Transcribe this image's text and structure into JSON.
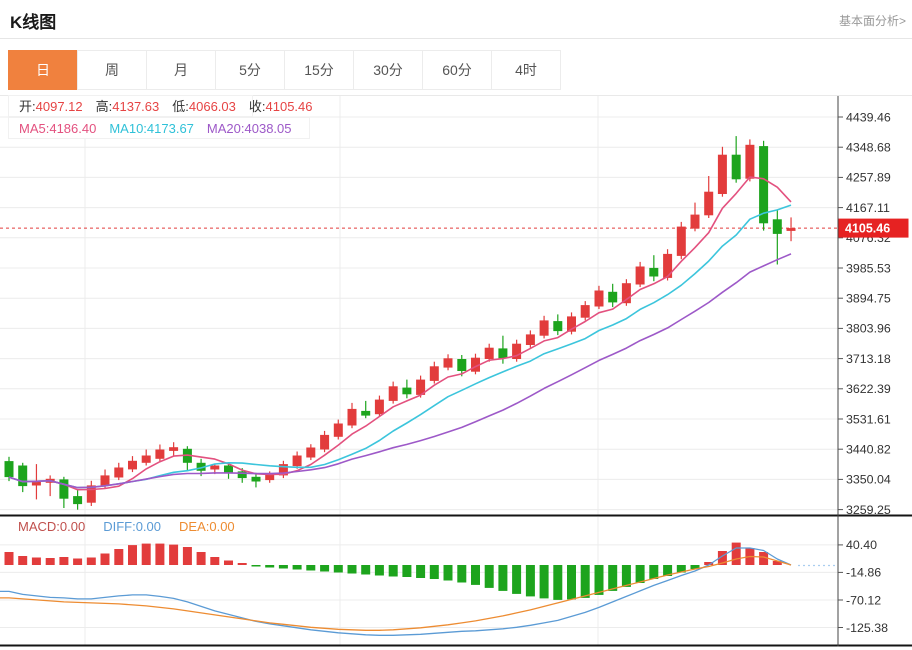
{
  "header": {
    "title": "K线图",
    "link": "基本面分析>"
  },
  "tabs": {
    "items": [
      "日",
      "周",
      "月",
      "5分",
      "15分",
      "30分",
      "60分",
      "4时"
    ],
    "active": "日"
  },
  "info": {
    "ohlc": [
      {
        "label": "开:",
        "value": "4097.12"
      },
      {
        "label": "高:",
        "value": "4137.63"
      },
      {
        "label": "低:",
        "value": "4066.03"
      },
      {
        "label": "收:",
        "value": "4105.46"
      }
    ],
    "ma": [
      {
        "label": "MA5:",
        "value": "4186.40",
        "color": "#e3517f"
      },
      {
        "label": "MA10:",
        "value": "4173.67",
        "color": "#2fc1d8"
      },
      {
        "label": "MA20:",
        "value": "4038.05",
        "color": "#9d59c8"
      }
    ]
  },
  "macd_legend": [
    {
      "label": "MACD:",
      "value": "0.00",
      "color": "#c0504d"
    },
    {
      "label": "DIFF:",
      "value": "0.00",
      "color": "#5b9bd5"
    },
    {
      "label": "DEA:",
      "value": "0.00",
      "color": "#ed8c32"
    }
  ],
  "price_badge": "4105.46",
  "chart_data": {
    "type": "candlestick",
    "title": "K线图 日K with MACD",
    "price_ticks": [
      "4439.46",
      "4348.68",
      "4257.89",
      "4167.11",
      "4076.32",
      "3985.53",
      "3894.75",
      "3803.96",
      "3713.18",
      "3622.39",
      "3531.61",
      "3440.82",
      "3350.04",
      "3259.25"
    ],
    "macd_ticks": [
      "40.40",
      "-14.86",
      "-70.12",
      "-125.38"
    ],
    "current_price": 4105.46,
    "ma_periods": [
      5,
      10,
      20
    ],
    "candles": [
      [
        3405,
        3418,
        3345,
        3357
      ],
      [
        3392,
        3400,
        3312,
        3330
      ],
      [
        3332,
        3396,
        3290,
        3346
      ],
      [
        3340,
        3362,
        3300,
        3352
      ],
      [
        3350,
        3358,
        3264,
        3292
      ],
      [
        3300,
        3318,
        3259,
        3276
      ],
      [
        3280,
        3346,
        3270,
        3332
      ],
      [
        3330,
        3380,
        3322,
        3362
      ],
      [
        3356,
        3400,
        3348,
        3386
      ],
      [
        3380,
        3420,
        3372,
        3406
      ],
      [
        3400,
        3440,
        3392,
        3422
      ],
      [
        3412,
        3455,
        3404,
        3440
      ],
      [
        3436,
        3462,
        3420,
        3447
      ],
      [
        3442,
        3450,
        3378,
        3400
      ],
      [
        3400,
        3412,
        3360,
        3376
      ],
      [
        3380,
        3398,
        3366,
        3392
      ],
      [
        3392,
        3400,
        3352,
        3368
      ],
      [
        3374,
        3384,
        3340,
        3354
      ],
      [
        3358,
        3370,
        3326,
        3344
      ],
      [
        3348,
        3374,
        3340,
        3366
      ],
      [
        3362,
        3406,
        3354,
        3396
      ],
      [
        3390,
        3434,
        3382,
        3422
      ],
      [
        3416,
        3456,
        3408,
        3446
      ],
      [
        3440,
        3496,
        3432,
        3484
      ],
      [
        3478,
        3530,
        3470,
        3518
      ],
      [
        3512,
        3580,
        3504,
        3562
      ],
      [
        3556,
        3586,
        3534,
        3542
      ],
      [
        3546,
        3602,
        3538,
        3590
      ],
      [
        3586,
        3644,
        3578,
        3630
      ],
      [
        3626,
        3650,
        3594,
        3606
      ],
      [
        3604,
        3662,
        3596,
        3650
      ],
      [
        3646,
        3704,
        3638,
        3690
      ],
      [
        3686,
        3726,
        3678,
        3714
      ],
      [
        3712,
        3724,
        3660,
        3676
      ],
      [
        3674,
        3728,
        3666,
        3716
      ],
      [
        3712,
        3758,
        3704,
        3746
      ],
      [
        3744,
        3782,
        3698,
        3714
      ],
      [
        3712,
        3770,
        3704,
        3758
      ],
      [
        3754,
        3798,
        3746,
        3786
      ],
      [
        3782,
        3842,
        3774,
        3828
      ],
      [
        3826,
        3846,
        3784,
        3796
      ],
      [
        3794,
        3852,
        3786,
        3840
      ],
      [
        3836,
        3886,
        3828,
        3874
      ],
      [
        3870,
        3932,
        3862,
        3918
      ],
      [
        3914,
        3938,
        3868,
        3882
      ],
      [
        3880,
        3952,
        3872,
        3940
      ],
      [
        3936,
        4004,
        3928,
        3990
      ],
      [
        3986,
        4024,
        3946,
        3960
      ],
      [
        3956,
        4042,
        3948,
        4028
      ],
      [
        4022,
        4124,
        4012,
        4110
      ],
      [
        4104,
        4182,
        4096,
        4146
      ],
      [
        4144,
        4262,
        4136,
        4215
      ],
      [
        4208,
        4350,
        4200,
        4326
      ],
      [
        4326,
        4382,
        4242,
        4252
      ],
      [
        4254,
        4372,
        4246,
        4356
      ],
      [
        4352,
        4368,
        4098,
        4120
      ],
      [
        4132,
        4160,
        3996,
        4088
      ],
      [
        4097.12,
        4137.63,
        4066.03,
        4105.46
      ]
    ],
    "macd_hist": [
      26,
      18,
      15,
      14,
      16,
      13,
      15,
      23,
      32,
      40,
      43,
      43,
      41,
      36,
      26,
      16,
      9,
      4,
      -3,
      -5,
      -7,
      -9,
      -11,
      -13,
      -15,
      -17,
      -19,
      -21,
      -23,
      -24,
      -26,
      -28,
      -31,
      -35,
      -40,
      -46,
      -52,
      -58,
      -63,
      -67,
      -70,
      -69,
      -66,
      -60,
      -52,
      -44,
      -36,
      -28,
      -22,
      -15,
      -8,
      6,
      28,
      45,
      34,
      26,
      8,
      0
    ],
    "diff": [
      -53,
      -59,
      -62,
      -65,
      -66,
      -68,
      -68,
      -65,
      -62,
      -60,
      -60,
      -63,
      -67,
      -74,
      -83,
      -92,
      -99,
      -106,
      -113,
      -118,
      -122,
      -126,
      -130,
      -133,
      -136,
      -138,
      -140,
      -141,
      -141,
      -140,
      -139,
      -137,
      -135,
      -133,
      -132,
      -130,
      -128,
      -125,
      -121,
      -116,
      -111,
      -103,
      -95,
      -85,
      -74,
      -63,
      -52,
      -41,
      -31,
      -21,
      -12,
      0,
      18,
      34,
      34,
      29,
      12,
      0
    ],
    "dea": [
      -66,
      -68,
      -70,
      -72,
      -74,
      -75,
      -76,
      -77,
      -78,
      -80,
      -82,
      -85,
      -88,
      -92,
      -96,
      -100,
      -104,
      -108,
      -112,
      -116,
      -119,
      -122,
      -125,
      -127,
      -129,
      -130,
      -131,
      -131,
      -130,
      -128,
      -126,
      -123,
      -120,
      -116,
      -112,
      -107,
      -102,
      -96,
      -90,
      -83,
      -76,
      -69,
      -62,
      -55,
      -48,
      -41,
      -34,
      -27,
      -20,
      -14,
      -8,
      -3,
      4,
      12,
      17,
      16,
      8,
      0
    ],
    "colors": {
      "up": "#e23c3c",
      "down": "#1da41d",
      "ma5": "#e3517f",
      "ma10": "#3cc5dc",
      "ma20": "#9d59c8",
      "diff": "#5b9bd5",
      "dea": "#ed8c32",
      "grid": "#ececec",
      "axis": "#444444",
      "tick_text": "#333333",
      "badge": "#e62222",
      "dotted": "#e23c3c",
      "macd_dotted": "#a9cdf0",
      "separator": "#141414",
      "active_tab": "#f0813e"
    }
  }
}
